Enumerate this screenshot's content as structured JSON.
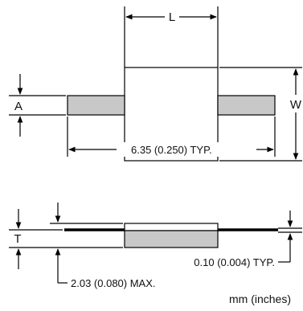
{
  "top_view": {
    "length_label": "L",
    "width_label": "W",
    "terminal_label": "A",
    "lead_spacing_label": "6.35 (0.250) TYP."
  },
  "side_view": {
    "thickness_label": "T",
    "lead_thickness_label": "0.10 (0.004) TYP.",
    "max_height_label": "2.03 (0.080) MAX."
  },
  "units_label": "mm (inches)",
  "colors": {
    "line": "#000000",
    "terminal_fill": "#c8c8c8",
    "body_fill": "#ffffff"
  }
}
